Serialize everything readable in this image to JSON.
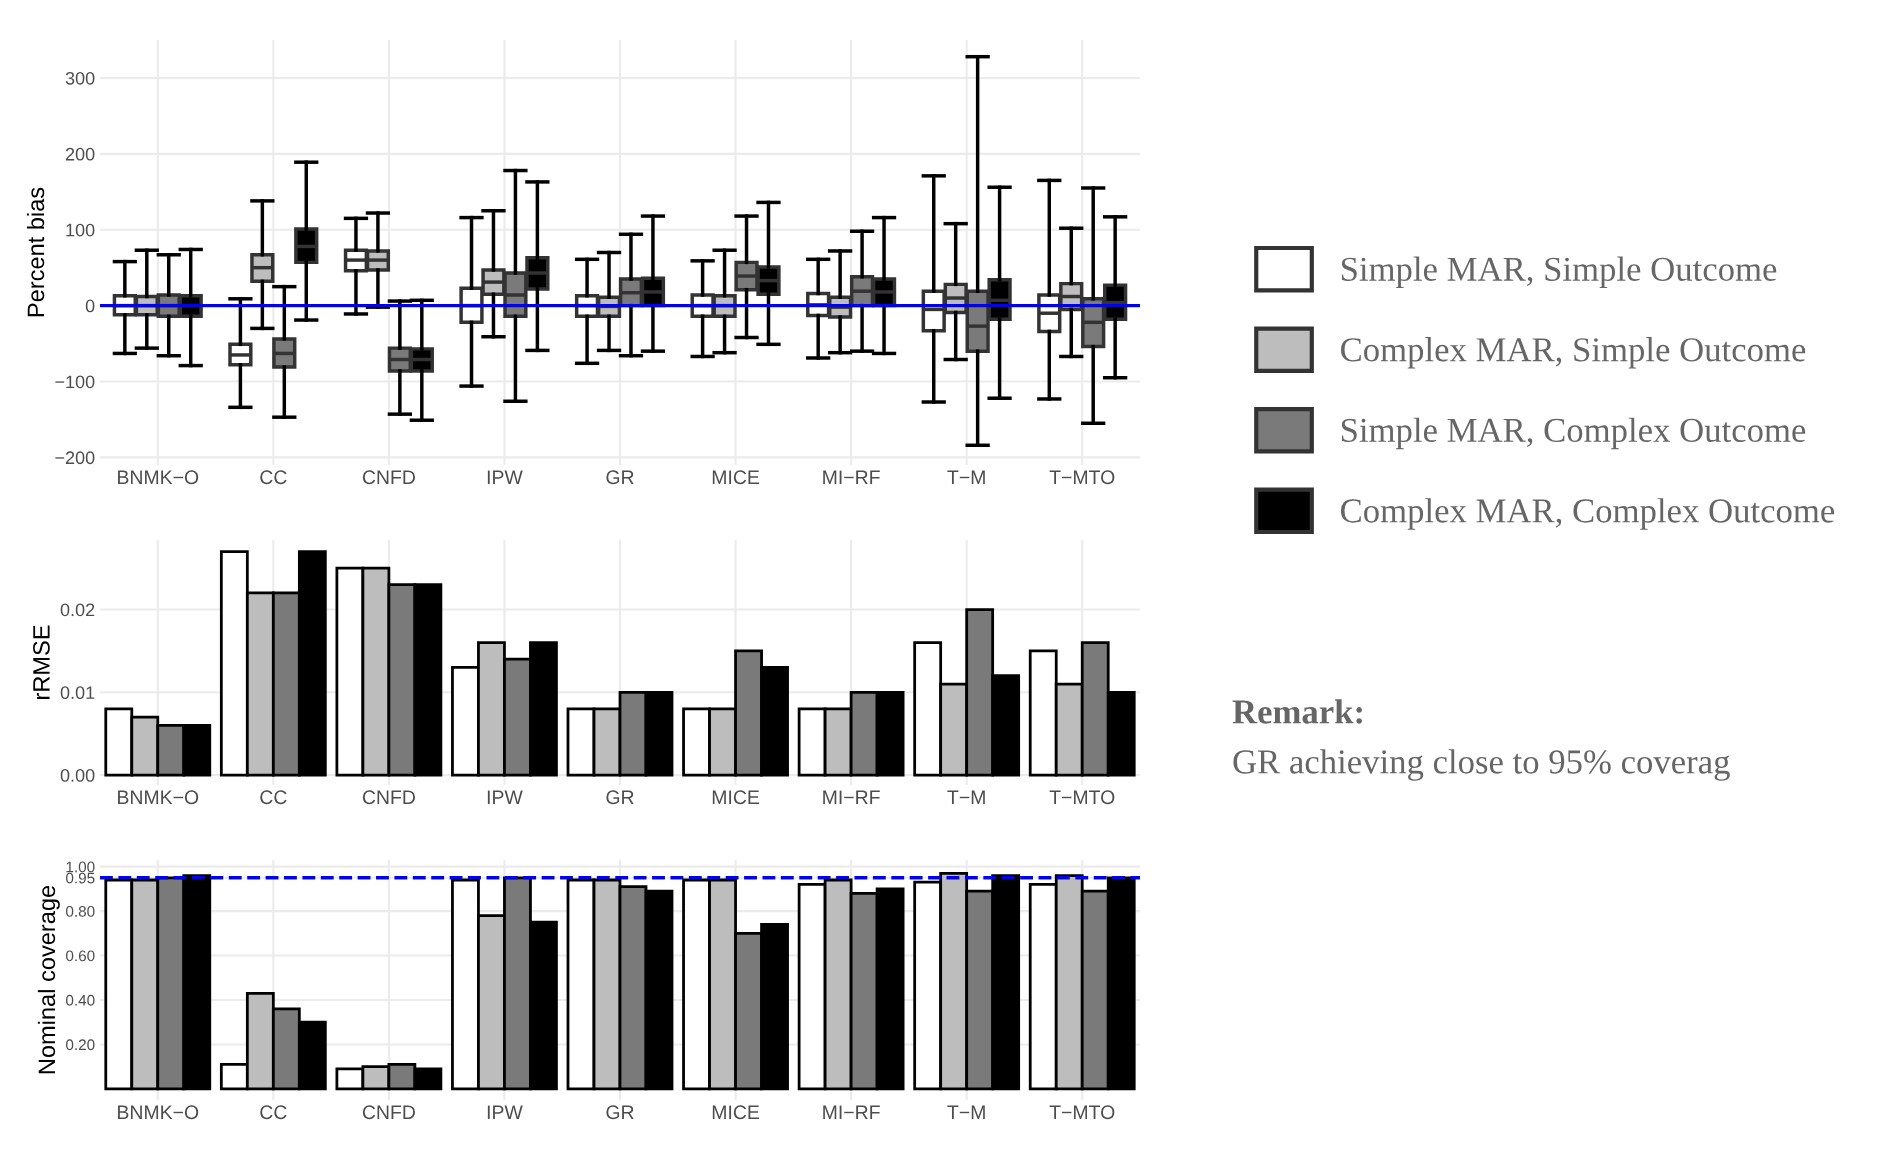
{
  "chart_data": [
    {
      "type": "box",
      "ylabel": "Percent bias",
      "categories": [
        "BNMK−O",
        "CC",
        "CNFD",
        "IPW",
        "GR",
        "MICE",
        "MI−RF",
        "T−M",
        "T−MTO"
      ],
      "ylim": [
        -210,
        350
      ],
      "yticks": [
        {
          "value": -200,
          "label": "−200"
        },
        {
          "value": -100,
          "label": "−100"
        },
        0,
        100,
        200,
        300
      ],
      "grid": true,
      "legend": "right",
      "ref_lines": [
        {
          "axis": "y",
          "value": 0,
          "color": "#0000ff",
          "line_style": "solid"
        }
      ],
      "series": [
        {
          "name": "Simple MAR, Simple Outcome",
          "color": "#ffffff",
          "boxes": [
            {
              "low": -63,
              "q1": -12,
              "median": 0,
              "q3": 13,
              "high": 58
            },
            {
              "low": -134,
              "q1": -78,
              "median": -65,
              "q3": -51,
              "high": 9
            },
            {
              "low": -11,
              "q1": 46,
              "median": 60,
              "q3": 73,
              "high": 115
            },
            {
              "low": -106,
              "q1": -22,
              "median": 0,
              "q3": 23,
              "high": 116
            },
            {
              "low": -76,
              "q1": -14,
              "median": 0,
              "q3": 13,
              "high": 61
            },
            {
              "low": -67,
              "q1": -14,
              "median": 0,
              "q3": 14,
              "high": 59
            },
            {
              "low": -69,
              "q1": -13,
              "median": 1,
              "q3": 16,
              "high": 61
            },
            {
              "low": -127,
              "q1": -33,
              "median": -5,
              "q3": 19,
              "high": 171
            },
            {
              "low": -123,
              "q1": -34,
              "median": -10,
              "q3": 14,
              "high": 165
            }
          ]
        },
        {
          "name": "Complex MAR, Simple Outcome",
          "color": "#bdbdbd",
          "boxes": [
            {
              "low": -56,
              "q1": -12,
              "median": 0,
              "q3": 12,
              "high": 73
            },
            {
              "low": -30,
              "q1": 32,
              "median": 50,
              "q3": 67,
              "high": 138
            },
            {
              "low": -2,
              "q1": 47,
              "median": 60,
              "q3": 72,
              "high": 122
            },
            {
              "low": -41,
              "q1": 15,
              "median": 31,
              "q3": 47,
              "high": 125
            },
            {
              "low": -59,
              "q1": -14,
              "median": -1,
              "q3": 11,
              "high": 70
            },
            {
              "low": -62,
              "q1": -14,
              "median": 0,
              "q3": 13,
              "high": 73
            },
            {
              "low": -62,
              "q1": -15,
              "median": -2,
              "q3": 11,
              "high": 72
            },
            {
              "low": -71,
              "q1": -9,
              "median": 10,
              "q3": 28,
              "high": 108
            },
            {
              "low": -67,
              "q1": -5,
              "median": 12,
              "q3": 29,
              "high": 102
            }
          ]
        },
        {
          "name": "Simple MAR, Complex Outcome",
          "color": "#7a7a7a",
          "boxes": [
            {
              "low": -66,
              "q1": -14,
              "median": 0,
              "q3": 14,
              "high": 67
            },
            {
              "low": -147,
              "q1": -81,
              "median": -63,
              "q3": -44,
              "high": 25
            },
            {
              "low": -143,
              "q1": -86,
              "median": -71,
              "q3": -56,
              "high": 6
            },
            {
              "low": -126,
              "q1": -14,
              "median": 14,
              "q3": 43,
              "high": 178
            },
            {
              "low": -66,
              "q1": 0,
              "median": 17,
              "q3": 35,
              "high": 94
            },
            {
              "low": -42,
              "q1": 21,
              "median": 39,
              "q3": 57,
              "high": 118
            },
            {
              "low": -60,
              "q1": 0,
              "median": 19,
              "q3": 38,
              "high": 98
            },
            {
              "low": -184,
              "q1": -60,
              "median": -27,
              "q3": 19,
              "high": 328
            },
            {
              "low": -155,
              "q1": -54,
              "median": -22,
              "q3": 9,
              "high": 155
            }
          ]
        },
        {
          "name": "Complex MAR, Complex Outcome",
          "color": "#000000",
          "boxes": [
            {
              "low": -79,
              "q1": -14,
              "median": 0,
              "q3": 13,
              "high": 74
            },
            {
              "low": -19,
              "q1": 57,
              "median": 78,
              "q3": 101,
              "high": 189
            },
            {
              "low": -151,
              "q1": -86,
              "median": -71,
              "q3": -57,
              "high": 7
            },
            {
              "low": -59,
              "q1": 22,
              "median": 43,
              "q3": 63,
              "high": 163
            },
            {
              "low": -60,
              "q1": 0,
              "median": 18,
              "q3": 36,
              "high": 118
            },
            {
              "low": -51,
              "q1": 15,
              "median": 33,
              "q3": 51,
              "high": 136
            },
            {
              "low": -63,
              "q1": 0,
              "median": 18,
              "q3": 35,
              "high": 116
            },
            {
              "low": -122,
              "q1": -18,
              "median": 7,
              "q3": 34,
              "high": 156
            },
            {
              "low": -95,
              "q1": -18,
              "median": 4,
              "q3": 27,
              "high": 117
            }
          ]
        }
      ]
    },
    {
      "type": "bar",
      "ylabel": "rRMSE",
      "categories": [
        "BNMK−O",
        "CC",
        "CNFD",
        "IPW",
        "GR",
        "MICE",
        "MI−RF",
        "T−M",
        "T−MTO"
      ],
      "ylim": [
        -0.0012,
        0.0284
      ],
      "yticks": [
        {
          "value": 0,
          "label": "0.00"
        },
        {
          "value": 0.01,
          "label": "0.01"
        },
        {
          "value": 0.02,
          "label": "0.02"
        }
      ],
      "grid": true,
      "annotations": [
        "Remark:",
        "GR achieving close to 95% coverag"
      ],
      "series": [
        {
          "color": "#ffffff",
          "values": [
            0.008,
            0.027,
            0.025,
            0.013,
            0.008,
            0.008,
            0.008,
            0.016,
            0.015
          ]
        },
        {
          "color": "#bdbdbd",
          "values": [
            0.007,
            0.022,
            0.025,
            0.016,
            0.008,
            0.008,
            0.008,
            0.011,
            0.011
          ]
        },
        {
          "color": "#7a7a7a",
          "values": [
            0.006,
            0.022,
            0.023,
            0.014,
            0.01,
            0.015,
            0.01,
            0.02,
            0.016
          ]
        },
        {
          "color": "#000000",
          "values": [
            0.006,
            0.027,
            0.023,
            0.016,
            0.01,
            0.013,
            0.01,
            0.012,
            0.01
          ]
        }
      ]
    },
    {
      "type": "bar",
      "ylabel": "Nominal coverage",
      "categories": [
        "BNMK−O",
        "CC",
        "CNFD",
        "IPW",
        "GR",
        "MICE",
        "MI−RF",
        "T−M",
        "T−MTO"
      ],
      "ylim": [
        -0.05,
        1.03
      ],
      "yticks": [
        {
          "value": 0.2,
          "label": "0.20"
        },
        {
          "value": 0.4,
          "label": "0.40"
        },
        {
          "value": 0.6,
          "label": "0.60"
        },
        {
          "value": 0.8,
          "label": "0.80"
        },
        {
          "value": 0.95,
          "label": "0.95"
        },
        {
          "value": 1.0,
          "label": "1.00"
        }
      ],
      "grid": true,
      "ref_lines": [
        {
          "axis": "y",
          "value": 0.95,
          "color": "#0000ff",
          "line_style": "dashed"
        }
      ],
      "series": [
        {
          "color": "#ffffff",
          "values": [
            0.94,
            0.11,
            0.09,
            0.94,
            0.94,
            0.94,
            0.92,
            0.93,
            0.92
          ]
        },
        {
          "color": "#bdbdbd",
          "values": [
            0.94,
            0.43,
            0.1,
            0.78,
            0.94,
            0.94,
            0.94,
            0.97,
            0.96
          ]
        },
        {
          "color": "#7a7a7a",
          "values": [
            0.95,
            0.36,
            0.11,
            0.95,
            0.91,
            0.7,
            0.88,
            0.89,
            0.89
          ]
        },
        {
          "color": "#000000",
          "values": [
            0.96,
            0.3,
            0.09,
            0.75,
            0.89,
            0.74,
            0.9,
            0.96,
            0.95
          ]
        }
      ]
    }
  ]
}
